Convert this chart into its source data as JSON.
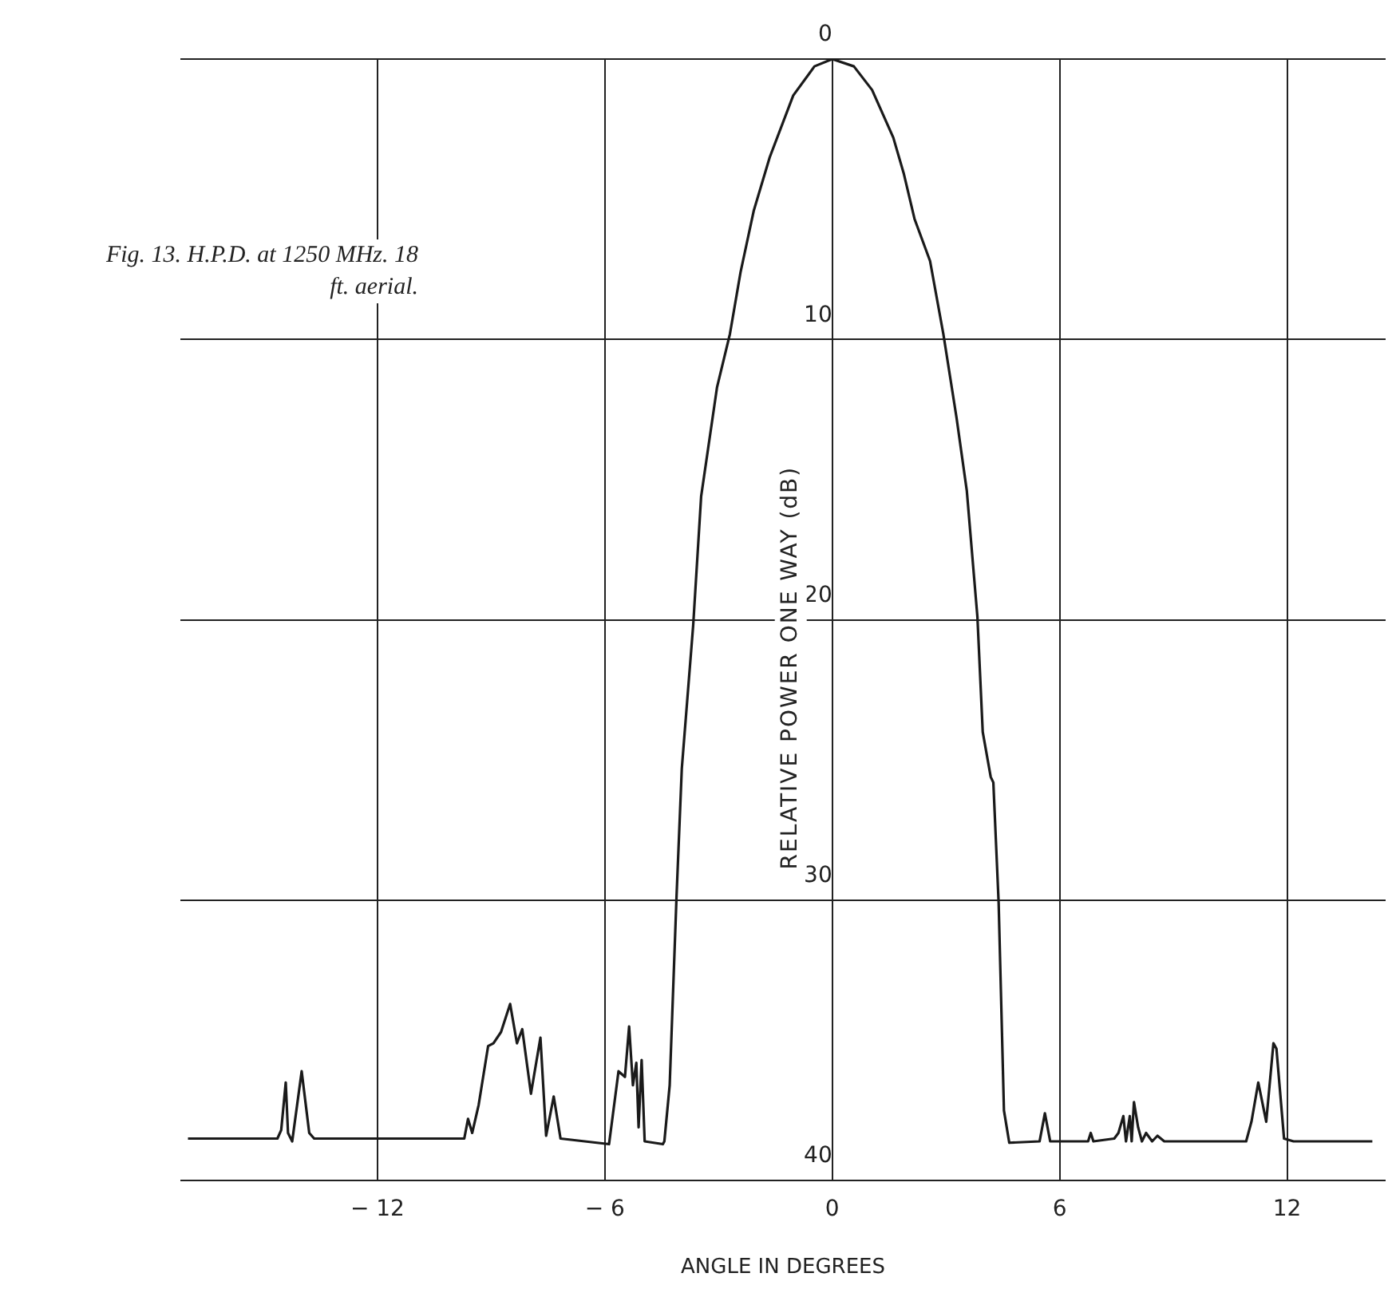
{
  "chart_data": {
    "type": "line",
    "xlabel": "ANGLE IN DEGREES",
    "ylabel": "RELATIVE POWER ONE WAY (dB)",
    "annotations": [
      "Fig. 13. H.P.D. at 1250 MHz. 18 ft. aerial."
    ],
    "xlim": [
      -17.2,
      14.6
    ],
    "ylim": [
      40,
      0
    ],
    "xticks": [
      {
        "value": -12,
        "label": "− 12"
      },
      {
        "value": -6,
        "label": "− 6"
      },
      0,
      6,
      12
    ],
    "yticks": [
      0,
      10,
      20,
      30,
      40
    ],
    "grid": true,
    "legend": false,
    "marker": "none",
    "line_style": "solid",
    "series": [
      {
        "color": "#1a1a1a",
        "x": [
          -17.0,
          -14.64,
          -14.54,
          -14.42,
          -14.36,
          -14.25,
          -14.0,
          -13.8,
          -13.67,
          -9.71,
          -9.61,
          -9.5,
          -9.33,
          -9.08,
          -8.94,
          -8.74,
          -8.5,
          -8.32,
          -8.18,
          -7.95,
          -7.7,
          -7.55,
          -7.35,
          -7.17,
          -5.89,
          -5.64,
          -5.47,
          -5.36,
          -5.26,
          -5.17,
          -5.11,
          -5.03,
          -4.95,
          -4.47,
          -4.43,
          -4.29,
          -4.11,
          -3.97,
          -3.67,
          -3.46,
          -3.04,
          -2.7,
          -2.42,
          -2.07,
          -1.65,
          -1.03,
          -0.47,
          0,
          0.57,
          1.05,
          1.61,
          1.89,
          2.17,
          2.58,
          2.93,
          3.28,
          3.55,
          3.83,
          3.97,
          4.18,
          4.25,
          4.39,
          4.53,
          4.67,
          5.47,
          5.61,
          5.75,
          6.75,
          6.82,
          6.89,
          7.44,
          7.55,
          7.68,
          7.75,
          7.85,
          7.9,
          7.96,
          8.07,
          8.17,
          8.28,
          8.44,
          8.58,
          8.76,
          10.92,
          11.06,
          11.24,
          11.45,
          11.64,
          11.72,
          11.92,
          12.17,
          14.25
        ],
        "values": [
          38.5,
          38.5,
          38.2,
          36.5,
          38.3,
          38.6,
          36.1,
          38.3,
          38.5,
          38.5,
          37.8,
          38.3,
          37.3,
          35.2,
          35.1,
          34.7,
          33.7,
          35.1,
          34.6,
          36.9,
          34.9,
          38.4,
          37.0,
          38.5,
          38.7,
          36.1,
          36.3,
          34.5,
          36.6,
          35.8,
          38.1,
          35.7,
          38.6,
          38.7,
          38.6,
          36.6,
          29.9,
          25.3,
          20.2,
          15.6,
          11.7,
          9.8,
          7.6,
          5.4,
          3.5,
          1.3,
          0.26,
          0,
          0.26,
          1.1,
          2.8,
          4.1,
          5.7,
          7.2,
          9.8,
          12.8,
          15.4,
          19.9,
          24.0,
          25.6,
          25.8,
          30.1,
          37.5,
          38.65,
          38.6,
          37.6,
          38.6,
          38.6,
          38.3,
          38.6,
          38.5,
          38.3,
          37.7,
          38.6,
          37.7,
          38.6,
          37.2,
          38.1,
          38.6,
          38.3,
          38.6,
          38.4,
          38.6,
          38.6,
          37.9,
          36.5,
          37.9,
          35.1,
          35.3,
          38.5,
          38.6,
          38.6
        ]
      }
    ]
  }
}
